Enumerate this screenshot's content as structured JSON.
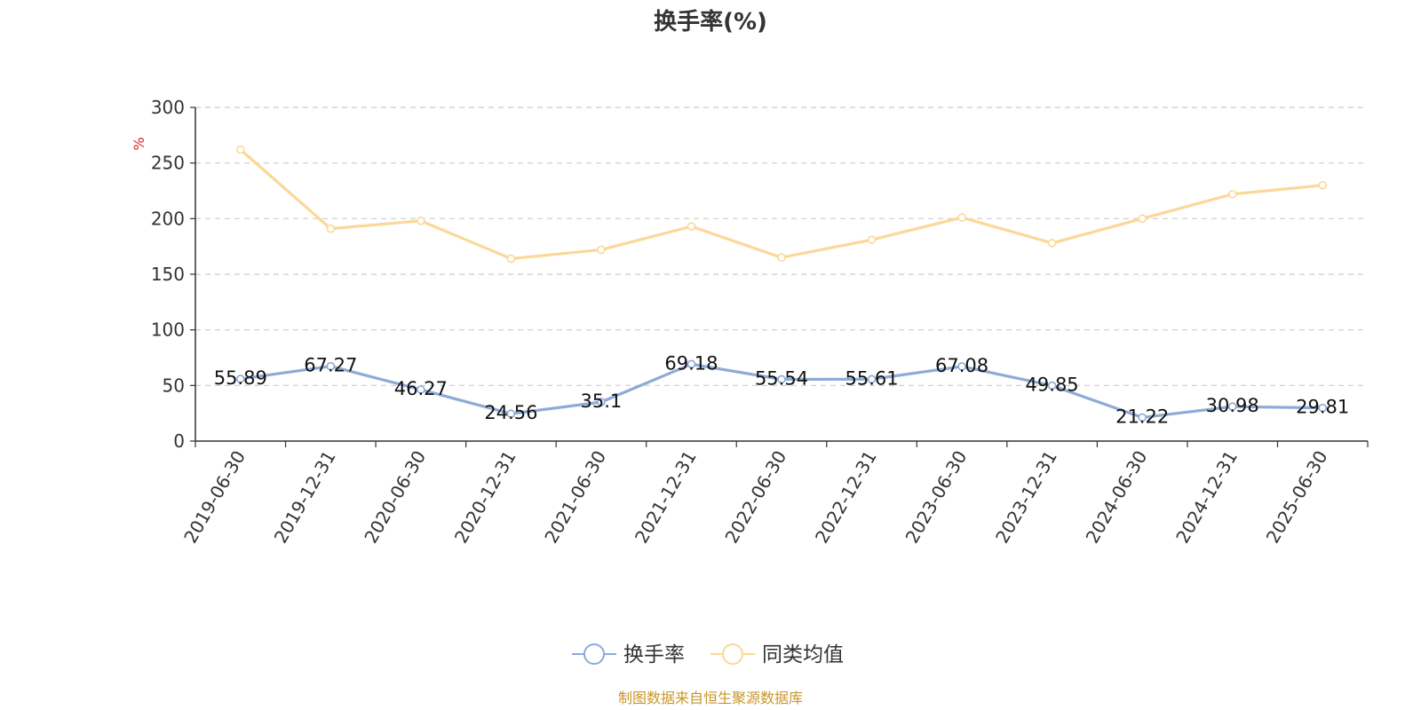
{
  "chart_data": {
    "type": "line",
    "title": "换手率(%)",
    "ylabel": "%",
    "xlabel": "",
    "ylim": [
      0,
      300
    ],
    "yticks": [
      0,
      50,
      100,
      150,
      200,
      250,
      300
    ],
    "grid": true,
    "legend_position": "bottom-center",
    "categories": [
      "2019-06-30",
      "2019-12-31",
      "2020-06-30",
      "2020-12-31",
      "2021-06-30",
      "2021-12-31",
      "2022-06-30",
      "2022-12-31",
      "2023-06-30",
      "2023-12-31",
      "2024-06-30",
      "2024-12-31",
      "2025-06-30"
    ],
    "series": [
      {
        "name": "换手率",
        "color": "#8eaad6",
        "show_labels": true,
        "values": [
          55.89,
          67.27,
          46.27,
          24.56,
          35.1,
          69.18,
          55.54,
          55.61,
          67.08,
          49.85,
          21.22,
          30.98,
          29.81
        ],
        "labels": [
          "55.89",
          "67.27",
          "46.27",
          "24.56",
          "35.1",
          "69.18",
          "55.54",
          "55.61",
          "67.08",
          "49.85",
          "21.22",
          "30.98",
          "29.81"
        ]
      },
      {
        "name": "同类均值",
        "color": "#fbd898",
        "show_labels": false,
        "values": [
          262,
          191,
          198,
          164,
          172,
          193,
          165,
          181,
          201,
          178,
          200,
          222,
          230
        ]
      }
    ],
    "source": "制图数据来自恒生聚源数据库"
  }
}
